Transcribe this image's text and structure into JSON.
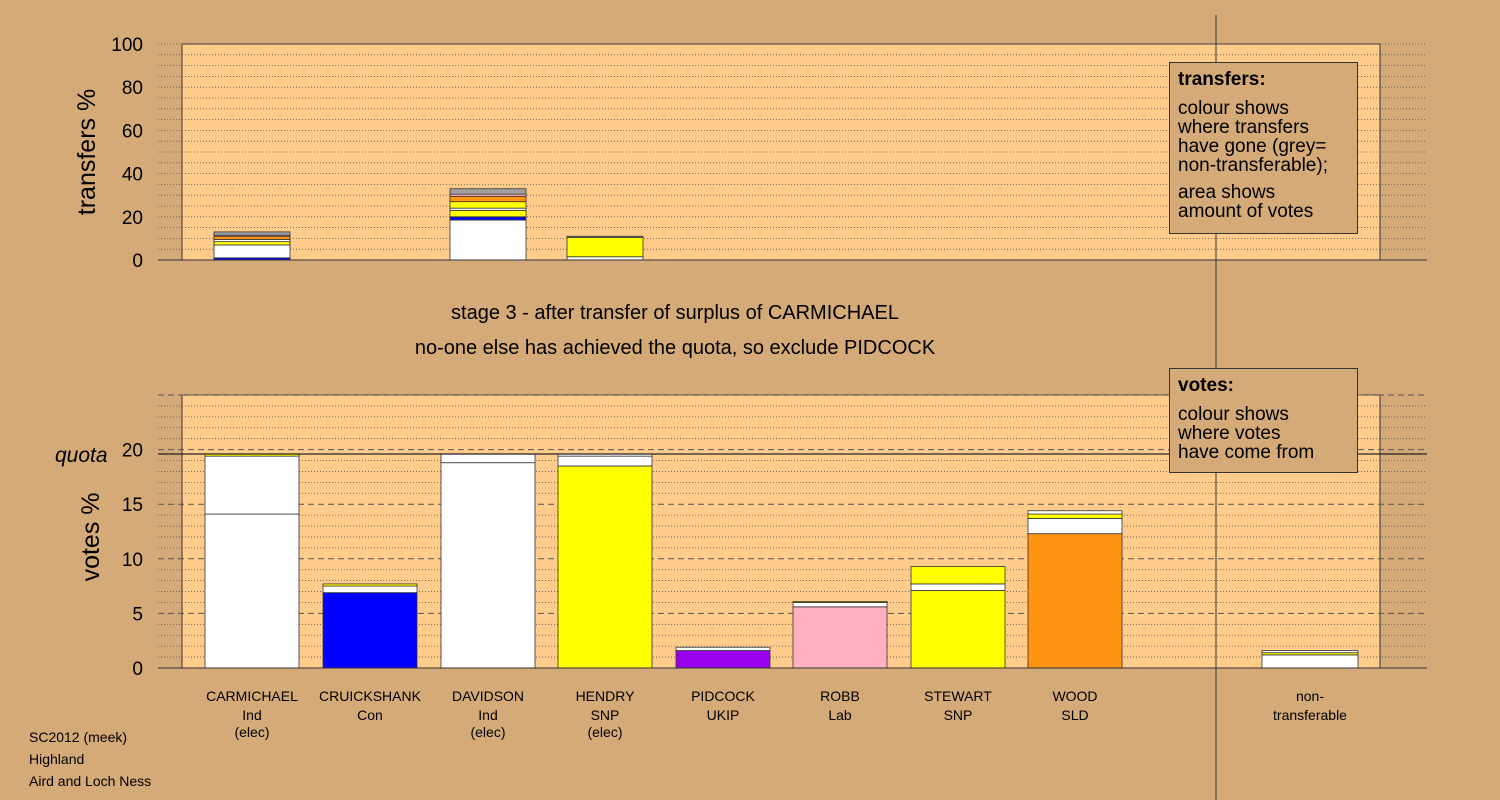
{
  "stage": {
    "line1": "stage 3 - after transfer of surplus of CARMICHAEL",
    "line2": "no-one else has achieved the quota, so exclude PIDCOCK"
  },
  "legend_transfers": {
    "title": "transfers:",
    "lines1": [
      "colour shows",
      "where transfers",
      "have gone (grey=",
      "non-transferable);"
    ],
    "lines2": [
      "area shows",
      "amount of votes"
    ]
  },
  "legend_votes": {
    "title": "votes:",
    "lines": [
      "colour shows",
      "where votes",
      "have come from"
    ]
  },
  "footer": [
    "SC2012 (meek)",
    "Highland",
    "Aird and Loch Ness"
  ],
  "colors": {
    "background": "#d4aa78",
    "plot_bg": "#ffcc8c",
    "Ind": "#ffffff",
    "Con": "#0000ff",
    "SNP": "#ffff00",
    "UKIP": "#9900ee",
    "Lab": "#ffb0c0",
    "SLD": "#ff9410",
    "nontransferable": "#a0a0a0"
  },
  "chart_data": [
    {
      "type": "bar",
      "id": "transfers",
      "ylabel": "transfers %",
      "ylim": [
        0,
        100
      ],
      "yticks": [
        0,
        20,
        40,
        60,
        80,
        100
      ],
      "bars": [
        {
          "slot": 1,
          "segments": [
            {
              "color": "Con",
              "value": 1
            },
            {
              "color": "Ind",
              "value": 6
            },
            {
              "color": "SNP",
              "value": 1.5
            },
            {
              "color": "Ind",
              "value": 1
            },
            {
              "color": "SLD",
              "value": 1.5
            },
            {
              "color": "Lab",
              "value": 0.5
            },
            {
              "color": "nontransferable",
              "value": 1.5
            }
          ]
        },
        {
          "slot": 3,
          "segments": [
            {
              "color": "Ind",
              "value": 18.5
            },
            {
              "color": "Con",
              "value": 1.5
            },
            {
              "color": "SNP",
              "value": 3
            },
            {
              "color": "Ind",
              "value": 1
            },
            {
              "color": "SNP",
              "value": 3
            },
            {
              "color": "SLD",
              "value": 2.5
            },
            {
              "color": "Lab",
              "value": 1
            },
            {
              "color": "nontransferable",
              "value": 2.5
            }
          ]
        },
        {
          "slot": 4,
          "segments": [
            {
              "color": "Ind",
              "value": 1.5
            },
            {
              "color": "SNP",
              "value": 9
            },
            {
              "color": "nontransferable",
              "value": 0.5
            }
          ]
        }
      ]
    },
    {
      "type": "bar",
      "id": "votes",
      "ylabel": "votes %",
      "ylim": [
        0,
        25
      ],
      "yticks": [
        0,
        5,
        10,
        15,
        20
      ],
      "quota": 19.6,
      "quota_label": "quota",
      "candidates": [
        {
          "name": "CARMICHAEL",
          "party": "Ind",
          "status": "(elec)",
          "segments": [
            {
              "color": "Ind",
              "value": 14.1
            },
            {
              "color": "Ind",
              "value": 5.3
            },
            {
              "color": "SNP",
              "value": 0.2
            }
          ]
        },
        {
          "name": "CRUICKSHANK",
          "party": "Con",
          "status": "",
          "segments": [
            {
              "color": "Con",
              "value": 6.9
            },
            {
              "color": "Ind",
              "value": 0.6
            },
            {
              "color": "SNP",
              "value": 0.2
            }
          ]
        },
        {
          "name": "DAVIDSON",
          "party": "Ind",
          "status": "(elec)",
          "segments": [
            {
              "color": "Ind",
              "value": 18.8
            },
            {
              "color": "Ind",
              "value": 0.8
            }
          ]
        },
        {
          "name": "HENDRY",
          "party": "SNP",
          "status": "(elec)",
          "segments": [
            {
              "color": "SNP",
              "value": 18.5
            },
            {
              "color": "Ind",
              "value": 0.9
            },
            {
              "color": "Ind",
              "value": 0.2
            }
          ]
        },
        {
          "name": "PIDCOCK",
          "party": "UKIP",
          "status": "",
          "segments": [
            {
              "color": "UKIP",
              "value": 1.6
            },
            {
              "color": "Ind",
              "value": 0.3
            }
          ]
        },
        {
          "name": "ROBB",
          "party": "Lab",
          "status": "",
          "segments": [
            {
              "color": "Lab",
              "value": 5.6
            },
            {
              "color": "Ind",
              "value": 0.4
            },
            {
              "color": "SNP",
              "value": 0.1
            }
          ]
        },
        {
          "name": "STEWART",
          "party": "SNP",
          "status": "",
          "segments": [
            {
              "color": "SNP",
              "value": 7.1
            },
            {
              "color": "Ind",
              "value": 0.6
            },
            {
              "color": "SNP",
              "value": 1.6
            }
          ]
        },
        {
          "name": "WOOD",
          "party": "SLD",
          "status": "",
          "segments": [
            {
              "color": "SLD",
              "value": 12.3
            },
            {
              "color": "Ind",
              "value": 1.4
            },
            {
              "color": "SNP",
              "value": 0.4
            },
            {
              "color": "Ind",
              "value": 0.3
            }
          ]
        }
      ],
      "nontransferable": {
        "label1": "non-",
        "label2": "transferable",
        "segments": [
          {
            "color": "Ind",
            "value": 1.2
          },
          {
            "color": "SNP",
            "value": 0.2
          },
          {
            "color": "Ind",
            "value": 0.2
          }
        ]
      }
    }
  ]
}
